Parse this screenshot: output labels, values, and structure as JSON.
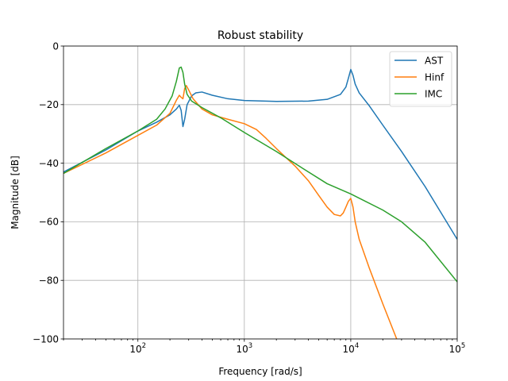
{
  "chart_data": {
    "type": "line",
    "title": "Robust stability",
    "xlabel": "Frequency [rad/s]",
    "ylabel": "Magnitude [dB]",
    "xscale": "log",
    "xlim": [
      20,
      100000
    ],
    "ylim": [
      -100,
      0
    ],
    "grid": true,
    "legend_position": "top-right",
    "x_ticks": [
      {
        "value": 100,
        "base": "10",
        "exp": "2"
      },
      {
        "value": 1000,
        "base": "10",
        "exp": "3"
      },
      {
        "value": 10000,
        "base": "10",
        "exp": "4"
      },
      {
        "value": 100000,
        "base": "10",
        "exp": "5"
      }
    ],
    "y_ticks": [
      {
        "value": 0,
        "label": "0"
      },
      {
        "value": -20,
        "label": "−20"
      },
      {
        "value": -40,
        "label": "−40"
      },
      {
        "value": -60,
        "label": "−60"
      },
      {
        "value": -80,
        "label": "−80"
      },
      {
        "value": -100,
        "label": "−100"
      }
    ],
    "series": [
      {
        "name": "AST",
        "color": "#1f77b4",
        "points": [
          [
            20,
            -43
          ],
          [
            50,
            -35.5
          ],
          [
            100,
            -29
          ],
          [
            150,
            -26
          ],
          [
            200,
            -23.5
          ],
          [
            230,
            -21.5
          ],
          [
            245,
            -20.2
          ],
          [
            255,
            -22
          ],
          [
            265,
            -27.5
          ],
          [
            275,
            -25
          ],
          [
            290,
            -20
          ],
          [
            320,
            -17
          ],
          [
            350,
            -16
          ],
          [
            400,
            -15.7
          ],
          [
            500,
            -16.8
          ],
          [
            700,
            -18
          ],
          [
            1000,
            -18.6
          ],
          [
            2000,
            -18.9
          ],
          [
            4000,
            -18.8
          ],
          [
            6000,
            -18.2
          ],
          [
            8000,
            -16.5
          ],
          [
            9000,
            -14
          ],
          [
            9500,
            -11
          ],
          [
            10000,
            -8
          ],
          [
            10500,
            -10
          ],
          [
            11000,
            -13
          ],
          [
            12000,
            -16
          ],
          [
            15000,
            -20.5
          ],
          [
            20000,
            -27
          ],
          [
            30000,
            -36
          ],
          [
            50000,
            -48
          ],
          [
            100000,
            -66
          ]
        ]
      },
      {
        "name": "Hinf",
        "color": "#ff7f0e",
        "points": [
          [
            20,
            -43.5
          ],
          [
            50,
            -36.5
          ],
          [
            100,
            -30.5
          ],
          [
            150,
            -27
          ],
          [
            200,
            -23
          ],
          [
            230,
            -18.5
          ],
          [
            245,
            -16.8
          ],
          [
            255,
            -17.5
          ],
          [
            265,
            -18
          ],
          [
            275,
            -14.5
          ],
          [
            285,
            -13.5
          ],
          [
            300,
            -15
          ],
          [
            330,
            -18
          ],
          [
            400,
            -21.5
          ],
          [
            500,
            -23.5
          ],
          [
            700,
            -25
          ],
          [
            1000,
            -26.5
          ],
          [
            1300,
            -28.5
          ],
          [
            1600,
            -31.5
          ],
          [
            2000,
            -35
          ],
          [
            3000,
            -41
          ],
          [
            4000,
            -46
          ],
          [
            5000,
            -51
          ],
          [
            6000,
            -55
          ],
          [
            7000,
            -57.5
          ],
          [
            8000,
            -58
          ],
          [
            8500,
            -57
          ],
          [
            9000,
            -55
          ],
          [
            9500,
            -53
          ],
          [
            10000,
            -52
          ],
          [
            10500,
            -55
          ],
          [
            11000,
            -60
          ],
          [
            12000,
            -66
          ],
          [
            15000,
            -76
          ],
          [
            20000,
            -88
          ],
          [
            27000,
            -100
          ]
        ]
      },
      {
        "name": "IMC",
        "color": "#2ca02c",
        "points": [
          [
            20,
            -43.5
          ],
          [
            50,
            -35
          ],
          [
            100,
            -29
          ],
          [
            150,
            -25
          ],
          [
            180,
            -21.5
          ],
          [
            210,
            -17
          ],
          [
            230,
            -12
          ],
          [
            245,
            -7.5
          ],
          [
            255,
            -7.2
          ],
          [
            265,
            -9
          ],
          [
            275,
            -13
          ],
          [
            290,
            -16.5
          ],
          [
            320,
            -18.8
          ],
          [
            400,
            -21
          ],
          [
            600,
            -24.5
          ],
          [
            1000,
            -29.5
          ],
          [
            2000,
            -36
          ],
          [
            4000,
            -43
          ],
          [
            6000,
            -47
          ],
          [
            10000,
            -50.5
          ],
          [
            20000,
            -56
          ],
          [
            30000,
            -60
          ],
          [
            50000,
            -67
          ],
          [
            100000,
            -80.5
          ]
        ]
      }
    ]
  }
}
